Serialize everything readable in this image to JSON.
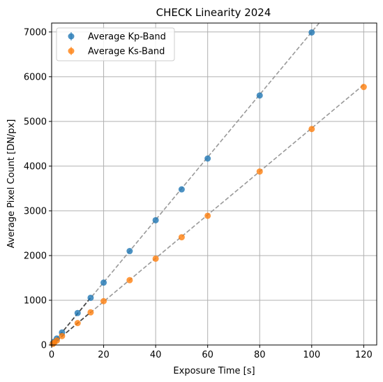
{
  "chart_data": {
    "type": "scatter",
    "title": "CHECK Linearity 2024",
    "xlabel": "Exposure Time [s]",
    "ylabel": "Average Pixel Count [DN/px]",
    "xlim": [
      0,
      125
    ],
    "ylim": [
      0,
      7200
    ],
    "xticks": [
      0,
      20,
      40,
      60,
      80,
      100,
      120
    ],
    "yticks": [
      0,
      1000,
      2000,
      3000,
      4000,
      5000,
      6000,
      7000
    ],
    "grid": true,
    "legend_position": "top-left",
    "series": [
      {
        "name": "Average Kp-Band",
        "color": "#1f77b4",
        "x": [
          0.5,
          1,
          2,
          4,
          10,
          15,
          20,
          30,
          40,
          50,
          60,
          80,
          100
        ],
        "y": [
          40,
          75,
          145,
          280,
          715,
          1055,
          1395,
          2100,
          2790,
          3480,
          4170,
          5580,
          6990
        ]
      },
      {
        "name": "Average Ks-Band",
        "color": "#ff7f0e",
        "x": [
          0.5,
          1,
          2,
          4,
          10,
          15,
          20,
          30,
          40,
          50,
          60,
          80,
          100,
          120
        ],
        "y": [
          25,
          50,
          100,
          200,
          490,
          730,
          980,
          1450,
          1930,
          2410,
          2890,
          3880,
          4830,
          5770
        ]
      }
    ],
    "fit_lines": [
      {
        "series": "Average Kp-Band",
        "style": "dashed",
        "color": "#999999",
        "x": [
          0,
          125
        ],
        "y": [
          0,
          8750
        ]
      },
      {
        "series": "Average Ks-Band",
        "style": "dashed",
        "color": "#999999",
        "x": [
          0,
          120
        ],
        "y": [
          0,
          5820
        ]
      },
      {
        "series": "Average Kp-Band",
        "style": "dashed",
        "color": "#444444",
        "x": [
          0,
          15
        ],
        "y": [
          0,
          1060
        ]
      },
      {
        "series": "Average Ks-Band",
        "style": "dashed",
        "color": "#444444",
        "x": [
          0,
          15
        ],
        "y": [
          0,
          735
        ]
      }
    ]
  }
}
